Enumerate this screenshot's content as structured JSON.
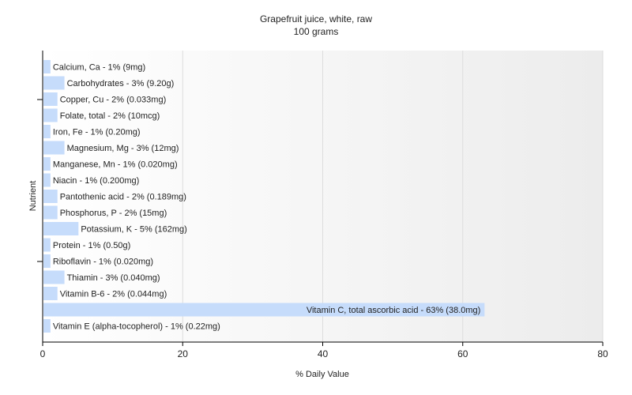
{
  "chart_data": {
    "type": "bar",
    "orientation": "horizontal",
    "title": "Grapefruit juice, white, raw",
    "subtitle": "100 grams",
    "xlabel": "% Daily Value",
    "ylabel": "Nutrient",
    "xlim": [
      0,
      80
    ],
    "x_ticks": [
      0,
      20,
      40,
      60,
      80
    ],
    "grid": "vertical",
    "legend": "none",
    "bar_color": "#c6dcfb",
    "categories": [
      "Calcium, Ca",
      "Carbohydrates",
      "Copper, Cu",
      "Folate, total",
      "Iron, Fe",
      "Magnesium, Mg",
      "Manganese, Mn",
      "Niacin",
      "Pantothenic acid",
      "Phosphorus, P",
      "Potassium, K",
      "Protein",
      "Riboflavin",
      "Thiamin",
      "Vitamin B-6",
      "Vitamin C, total ascorbic acid",
      "Vitamin E (alpha-tocopherol)"
    ],
    "values": [
      1,
      3,
      2,
      2,
      1,
      3,
      1,
      1,
      2,
      2,
      5,
      1,
      1,
      3,
      2,
      63,
      1
    ],
    "bar_labels": [
      "Calcium, Ca - 1% (9mg)",
      "Carbohydrates - 3% (9.20g)",
      "Copper, Cu - 2% (0.033mg)",
      "Folate, total - 2% (10mcg)",
      "Iron, Fe - 1% (0.20mg)",
      "Magnesium, Mg - 3% (12mg)",
      "Manganese, Mn - 1% (0.020mg)",
      "Niacin - 1% (0.200mg)",
      "Pantothenic acid - 2% (0.189mg)",
      "Phosphorus, P - 2% (15mg)",
      "Potassium, K - 5% (162mg)",
      "Protein - 1% (0.50g)",
      "Riboflavin - 1% (0.020mg)",
      "Thiamin - 3% (0.040mg)",
      "Vitamin B-6 - 2% (0.044mg)",
      "Vitamin C, total ascorbic acid - 63% (38.0mg)",
      "Vitamin E (alpha-tocopherol) - 1% (0.22mg)"
    ]
  }
}
